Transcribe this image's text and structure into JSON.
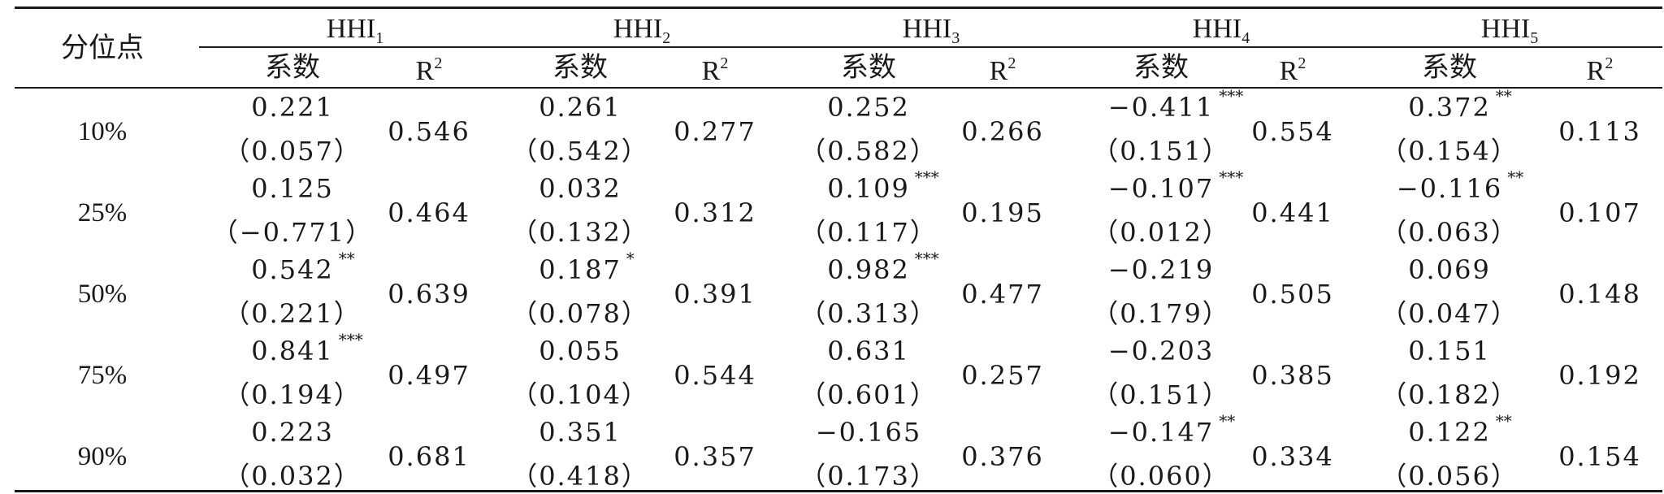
{
  "table": {
    "quantile_header": "分位点",
    "groups": [
      {
        "label": "HHI",
        "sub": "1"
      },
      {
        "label": "HHI",
        "sub": "2"
      },
      {
        "label": "HHI",
        "sub": "3"
      },
      {
        "label": "HHI",
        "sub": "4"
      },
      {
        "label": "HHI",
        "sub": "5"
      }
    ],
    "coef_header": "系数",
    "r2_header": {
      "label": "R",
      "sup": "2"
    },
    "rows": [
      {
        "quantile": "10%",
        "cells": [
          {
            "coef": "0.221",
            "stars": "",
            "se": "（0.057）",
            "r2": "0.546"
          },
          {
            "coef": "0.261",
            "stars": "",
            "se": "（0.542）",
            "r2": "0.277"
          },
          {
            "coef": "0.252",
            "stars": "",
            "se": "（0.582）",
            "r2": "0.266"
          },
          {
            "coef": "−0.411",
            "stars": "***",
            "se": "（0.151）",
            "r2": "0.554"
          },
          {
            "coef": "0.372",
            "stars": "**",
            "se": "（0.154）",
            "r2": "0.113"
          }
        ]
      },
      {
        "quantile": "25%",
        "cells": [
          {
            "coef": "0.125",
            "stars": "",
            "se": "（−0.771）",
            "r2": "0.464"
          },
          {
            "coef": "0.032",
            "stars": "",
            "se": "（0.132）",
            "r2": "0.312"
          },
          {
            "coef": "0.109",
            "stars": "***",
            "se": "（0.117）",
            "r2": "0.195"
          },
          {
            "coef": "−0.107",
            "stars": "***",
            "se": "（0.012）",
            "r2": "0.441"
          },
          {
            "coef": "−0.116",
            "stars": "**",
            "se": "（0.063）",
            "r2": "0.107"
          }
        ]
      },
      {
        "quantile": "50%",
        "cells": [
          {
            "coef": "0.542",
            "stars": "**",
            "se": "（0.221）",
            "r2": "0.639"
          },
          {
            "coef": "0.187",
            "stars": "*",
            "se": "（0.078）",
            "r2": "0.391"
          },
          {
            "coef": "0.982",
            "stars": "***",
            "se": "（0.313）",
            "r2": "0.477"
          },
          {
            "coef": "−0.219",
            "stars": "",
            "se": "（0.179）",
            "r2": "0.505"
          },
          {
            "coef": "0.069",
            "stars": "",
            "se": "（0.047）",
            "r2": "0.148"
          }
        ]
      },
      {
        "quantile": "75%",
        "cells": [
          {
            "coef": "0.841",
            "stars": "***",
            "se": "（0.194）",
            "r2": "0.497"
          },
          {
            "coef": "0.055",
            "stars": "",
            "se": "（0.104）",
            "r2": "0.544"
          },
          {
            "coef": "0.631",
            "stars": "",
            "se": "（0.601）",
            "r2": "0.257"
          },
          {
            "coef": "−0.203",
            "stars": "",
            "se": "（0.151）",
            "r2": "0.385"
          },
          {
            "coef": "0.151",
            "stars": "",
            "se": "（0.182）",
            "r2": "0.192"
          }
        ]
      },
      {
        "quantile": "90%",
        "cells": [
          {
            "coef": "0.223",
            "stars": "",
            "se": "（0.032）",
            "r2": "0.681"
          },
          {
            "coef": "0.351",
            "stars": "",
            "se": "（0.418）",
            "r2": "0.357"
          },
          {
            "coef": "−0.165",
            "stars": "",
            "se": "（0.173）",
            "r2": "0.376"
          },
          {
            "coef": "−0.147",
            "stars": "**",
            "se": "（0.060）",
            "r2": "0.334"
          },
          {
            "coef": "0.122",
            "stars": "**",
            "se": "（0.056）",
            "r2": "0.154"
          }
        ]
      }
    ]
  }
}
